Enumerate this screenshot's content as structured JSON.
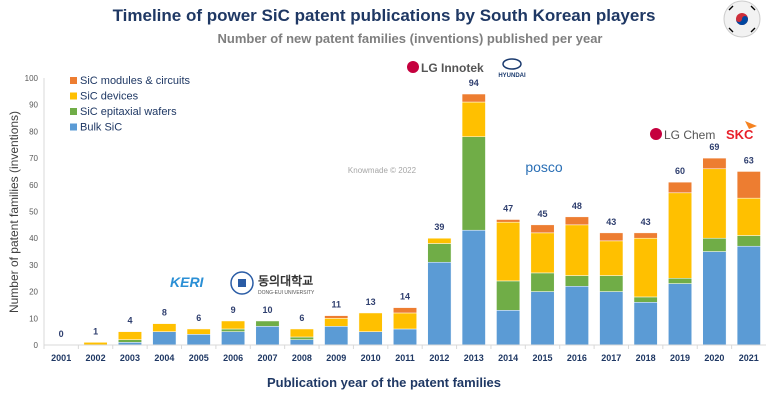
{
  "chart_data": {
    "type": "bar",
    "stacked": true,
    "title": "Timeline of power SiC patent publications by South Korean players",
    "subtitle": "Number of new patent families (inventions) published per year",
    "xlabel": "Publication year of the patent families",
    "ylabel": "Number of patent families (inventions)",
    "ylim": [
      0,
      100
    ],
    "yticks": [
      0,
      10,
      20,
      30,
      40,
      50,
      60,
      70,
      80,
      90,
      100
    ],
    "grid": false,
    "legend": "top-left",
    "watermark": "Knowmade © 2022",
    "categories": [
      "2001",
      "2002",
      "2003",
      "2004",
      "2005",
      "2006",
      "2007",
      "2008",
      "2009",
      "2010",
      "2011",
      "2012",
      "2013",
      "2014",
      "2015",
      "2016",
      "2017",
      "2018",
      "2019",
      "2020",
      "2021"
    ],
    "totals": [
      0,
      1,
      4,
      8,
      6,
      9,
      10,
      6,
      11,
      13,
      14,
      39,
      94,
      47,
      45,
      48,
      43,
      43,
      60,
      69,
      63
    ],
    "series": [
      {
        "name": "Bulk SiC",
        "color": "#5b9bd5",
        "values": [
          0,
          0,
          1,
          5,
          4,
          5,
          7,
          2,
          7,
          5,
          6,
          31,
          43,
          13,
          20,
          22,
          20,
          16,
          23,
          35,
          37
        ]
      },
      {
        "name": "SiC epitaxial wafers",
        "color": "#70ad47",
        "values": [
          0,
          0,
          1,
          0,
          0,
          1,
          2,
          1,
          0,
          0,
          0,
          7,
          35,
          11,
          7,
          4,
          6,
          2,
          2,
          5,
          4
        ]
      },
      {
        "name": "SiC devices",
        "color": "#ffc000",
        "values": [
          0,
          1,
          3,
          3,
          2,
          3,
          0,
          3,
          3,
          7,
          6,
          2,
          13,
          22,
          15,
          19,
          13,
          22,
          32,
          26,
          14
        ]
      },
      {
        "name": "SiC modules & circuits",
        "color": "#ed7d31",
        "values": [
          0,
          0,
          0,
          0,
          0,
          0,
          0,
          0,
          1,
          0,
          2,
          0,
          3,
          1,
          3,
          3,
          3,
          2,
          4,
          4,
          10
        ]
      }
    ]
  },
  "logos": {
    "lg_innotek": "LG Innotek",
    "hyundai": "HYUNDAI",
    "posco": "posco",
    "lg_chem": "LG Chem",
    "skc": "SKC",
    "keri": "KERI",
    "dong_eui": "동의대학교",
    "dong_eui_sub": "DONG-EUI UNIVERSITY"
  },
  "colors": {
    "title": "#1f3864",
    "axis_text": "#1f3864",
    "label": "#2f3f6f"
  }
}
